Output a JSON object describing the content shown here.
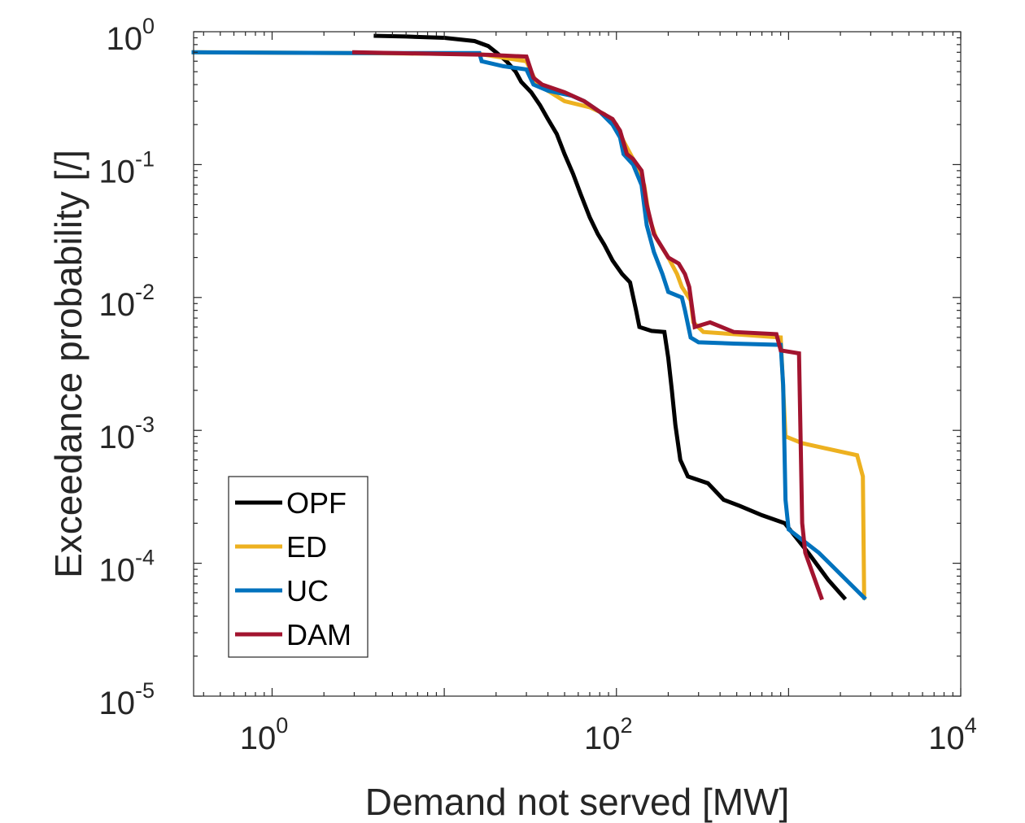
{
  "chart_data": {
    "type": "line",
    "xscale": "log",
    "yscale": "log",
    "xlabel": "Demand not served [MW]",
    "ylabel": "Exceedance probability [/]",
    "xlim": [
      0.35,
      10000
    ],
    "ylim": [
      1e-05,
      1
    ],
    "x_ticks": [
      {
        "base": "10",
        "exp": "0",
        "value": 1
      },
      {
        "base": "10",
        "exp": "2",
        "value": 100
      },
      {
        "base": "10",
        "exp": "4",
        "value": 10000
      }
    ],
    "y_ticks": [
      {
        "base": "10",
        "exp": "0",
        "value": 1
      },
      {
        "base": "10",
        "exp": "-1",
        "value": 0.1
      },
      {
        "base": "10",
        "exp": "-2",
        "value": 0.01
      },
      {
        "base": "10",
        "exp": "-3",
        "value": 0.001
      },
      {
        "base": "10",
        "exp": "-4",
        "value": 0.0001
      },
      {
        "base": "10",
        "exp": "-5",
        "value": 1e-05
      }
    ],
    "legend_position": "bottom-left",
    "series": [
      {
        "name": "OPF",
        "color": "#000000",
        "points": [
          [
            4,
            0.93
          ],
          [
            6,
            0.92
          ],
          [
            10,
            0.9
          ],
          [
            15,
            0.85
          ],
          [
            18,
            0.78
          ],
          [
            20,
            0.7
          ],
          [
            23,
            0.6
          ],
          [
            26,
            0.5
          ],
          [
            28,
            0.42
          ],
          [
            32,
            0.35
          ],
          [
            36,
            0.28
          ],
          [
            40,
            0.22
          ],
          [
            45,
            0.17
          ],
          [
            50,
            0.12
          ],
          [
            56,
            0.085
          ],
          [
            62,
            0.06
          ],
          [
            70,
            0.04
          ],
          [
            78,
            0.03
          ],
          [
            85,
            0.025
          ],
          [
            95,
            0.019
          ],
          [
            108,
            0.015
          ],
          [
            120,
            0.013
          ],
          [
            130,
            0.008
          ],
          [
            136,
            0.006
          ],
          [
            160,
            0.0056
          ],
          [
            190,
            0.0055
          ],
          [
            200,
            0.0035
          ],
          [
            210,
            0.002
          ],
          [
            220,
            0.0011
          ],
          [
            235,
            0.0006
          ],
          [
            260,
            0.00045
          ],
          [
            340,
            0.0004
          ],
          [
            420,
            0.0003
          ],
          [
            520,
            0.00027
          ],
          [
            700,
            0.00023
          ],
          [
            950,
            0.0002
          ],
          [
            1300,
            0.00012
          ],
          [
            1700,
            7.5e-05
          ],
          [
            2100,
            5.5e-05
          ]
        ]
      },
      {
        "name": "ED",
        "color": "#EDB120",
        "points": [
          [
            0.35,
            0.7
          ],
          [
            3,
            0.69
          ],
          [
            16,
            0.68
          ],
          [
            30,
            0.6
          ],
          [
            33,
            0.46
          ],
          [
            35,
            0.4
          ],
          [
            50,
            0.3
          ],
          [
            70,
            0.27
          ],
          [
            85,
            0.24
          ],
          [
            100,
            0.2
          ],
          [
            110,
            0.15
          ],
          [
            130,
            0.1
          ],
          [
            145,
            0.07
          ],
          [
            155,
            0.04
          ],
          [
            170,
            0.028
          ],
          [
            200,
            0.02
          ],
          [
            225,
            0.015
          ],
          [
            240,
            0.012
          ],
          [
            270,
            0.0095
          ],
          [
            280,
            0.0065
          ],
          [
            320,
            0.0055
          ],
          [
            480,
            0.0053
          ],
          [
            900,
            0.005
          ],
          [
            960,
            0.0009
          ],
          [
            1200,
            0.0008
          ],
          [
            2500,
            0.00065
          ],
          [
            2700,
            0.00045
          ],
          [
            2750,
            5.5e-05
          ]
        ]
      },
      {
        "name": "UC",
        "color": "#0072BD",
        "points": [
          [
            0.35,
            0.7
          ],
          [
            3,
            0.69
          ],
          [
            16,
            0.69
          ],
          [
            16.5,
            0.6
          ],
          [
            22,
            0.55
          ],
          [
            30,
            0.52
          ],
          [
            33,
            0.4
          ],
          [
            40,
            0.36
          ],
          [
            55,
            0.33
          ],
          [
            65,
            0.3
          ],
          [
            80,
            0.25
          ],
          [
            95,
            0.2
          ],
          [
            105,
            0.16
          ],
          [
            110,
            0.12
          ],
          [
            125,
            0.1
          ],
          [
            140,
            0.07
          ],
          [
            150,
            0.035
          ],
          [
            165,
            0.022
          ],
          [
            185,
            0.015
          ],
          [
            200,
            0.011
          ],
          [
            240,
            0.01
          ],
          [
            250,
            0.008
          ],
          [
            270,
            0.005
          ],
          [
            300,
            0.0046
          ],
          [
            480,
            0.0045
          ],
          [
            900,
            0.0044
          ],
          [
            930,
            0.0022
          ],
          [
            960,
            0.0003
          ],
          [
            1000,
            0.00018
          ],
          [
            1500,
            0.00012
          ],
          [
            2750,
            5.5e-05
          ]
        ]
      },
      {
        "name": "DAM",
        "color": "#A2142F",
        "points": [
          [
            3,
            0.7
          ],
          [
            10,
            0.68
          ],
          [
            18,
            0.67
          ],
          [
            30,
            0.65
          ],
          [
            33,
            0.45
          ],
          [
            37,
            0.4
          ],
          [
            50,
            0.35
          ],
          [
            65,
            0.3
          ],
          [
            80,
            0.25
          ],
          [
            95,
            0.22
          ],
          [
            105,
            0.18
          ],
          [
            115,
            0.12
          ],
          [
            125,
            0.11
          ],
          [
            140,
            0.09
          ],
          [
            150,
            0.05
          ],
          [
            165,
            0.03
          ],
          [
            180,
            0.025
          ],
          [
            200,
            0.02
          ],
          [
            230,
            0.018
          ],
          [
            250,
            0.015
          ],
          [
            265,
            0.012
          ],
          [
            285,
            0.006
          ],
          [
            350,
            0.0065
          ],
          [
            480,
            0.0055
          ],
          [
            850,
            0.0053
          ],
          [
            900,
            0.004
          ],
          [
            1150,
            0.0038
          ],
          [
            1200,
            0.0002
          ],
          [
            1250,
            0.00012
          ],
          [
            1550,
            5.5e-05
          ]
        ]
      }
    ]
  }
}
